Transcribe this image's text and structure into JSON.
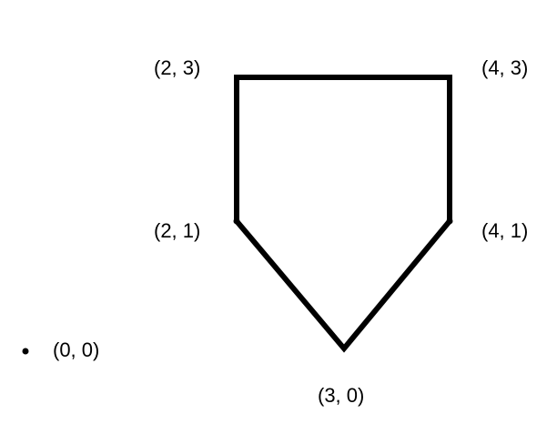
{
  "points": [
    {
      "id": "p23",
      "x": 2,
      "y": 3,
      "label": "(2, 3)"
    },
    {
      "id": "p43",
      "x": 4,
      "y": 3,
      "label": "(4, 3)"
    },
    {
      "id": "p21",
      "x": 2,
      "y": 1,
      "label": "(2, 1)"
    },
    {
      "id": "p41",
      "x": 4,
      "y": 1,
      "label": "(4, 1)"
    },
    {
      "id": "p30",
      "x": 3,
      "y": 0,
      "label": "(3, 0)"
    }
  ],
  "origin": {
    "x": 0,
    "y": 0,
    "label": "(0, 0)"
  },
  "polygon_order": [
    "p23",
    "p43",
    "p41",
    "p30",
    "p21"
  ],
  "colors": {
    "stroke": "#000000",
    "text": "#000000",
    "background": "#ffffff"
  }
}
